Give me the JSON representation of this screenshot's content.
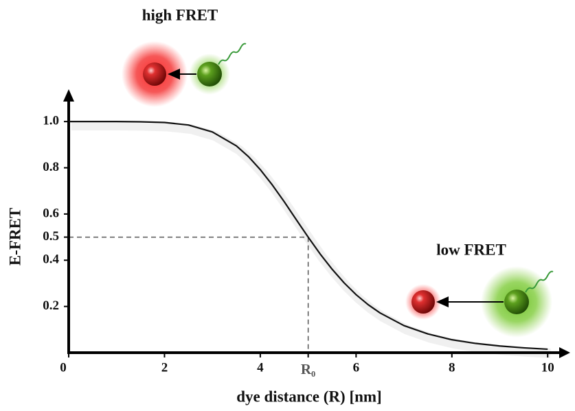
{
  "chart_data": {
    "type": "line",
    "x_label": "dye distance (R) [nm]",
    "y_label": "E-FRET",
    "annotations": [
      "high FRET",
      "low FRET"
    ],
    "x": [
      0,
      0.5,
      1,
      1.5,
      2,
      2.5,
      3,
      3.5,
      3.75,
      4,
      4.25,
      4.5,
      4.75,
      5,
      5.25,
      5.5,
      5.75,
      6,
      6.25,
      6.5,
      7,
      7.5,
      8,
      8.5,
      9,
      9.5,
      10
    ],
    "series": [
      {
        "color": "#111111",
        "values": [
          1,
          1,
          1,
          0.999,
          0.996,
          0.985,
          0.955,
          0.895,
          0.849,
          0.792,
          0.726,
          0.653,
          0.576,
          0.5,
          0.427,
          0.361,
          0.302,
          0.251,
          0.208,
          0.172,
          0.117,
          0.081,
          0.056,
          0.04,
          0.029,
          0.021,
          0.015
        ]
      }
    ],
    "xlim": [
      0,
      10.47
    ],
    "ylim": [
      0,
      1.14
    ],
    "xticks": [
      0,
      2,
      4,
      {
        "value": 5,
        "label": "R₀"
      },
      6,
      8,
      10
    ],
    "yticks": [
      0.2,
      0.4,
      0.5,
      0.6,
      0.8,
      {
        "value": 1,
        "label": "1.0"
      }
    ],
    "guide": {
      "x": 5,
      "y": 0.5
    }
  }
}
